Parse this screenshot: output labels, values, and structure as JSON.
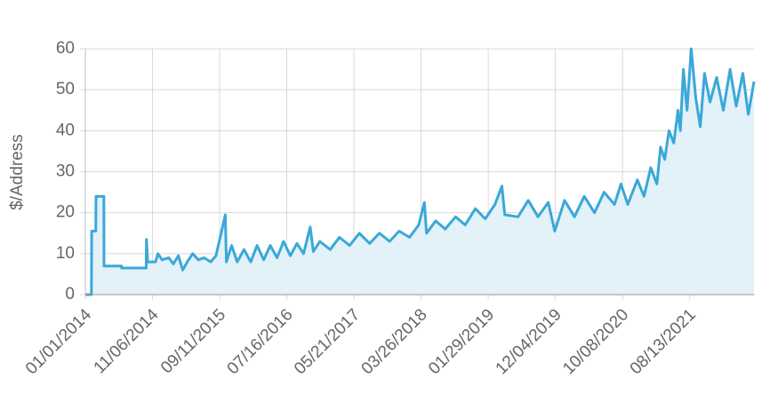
{
  "chart_data": {
    "type": "line",
    "ylabel": "$/Address",
    "color": "#3aa8d8",
    "fill": "#e3f1f9",
    "grid": true,
    "xlim": [
      "01/01/2014",
      "06/05/2022"
    ],
    "xticks": [
      "01/01/2014",
      "11/06/2014",
      "09/11/2015",
      "07/16/2016",
      "05/21/2017",
      "03/26/2018",
      "01/29/2019",
      "12/04/2019",
      "10/08/2020",
      "08/13/2021"
    ],
    "ylim": [
      0,
      60
    ],
    "yticks": [
      0,
      10,
      20,
      30,
      40,
      50,
      60
    ],
    "x": [
      "01/01/2014",
      "01/29/2014",
      "01/30/2014",
      "02/18/2014",
      "02/19/2014",
      "03/27/2014",
      "03/28/2014",
      "06/16/2014",
      "06/17/2014",
      "10/08/2014",
      "10/09/2014",
      "10/15/2014",
      "11/20/2014",
      "12/01/2014",
      "12/20/2014",
      "01/20/2015",
      "02/10/2015",
      "03/05/2015",
      "03/25/2015",
      "04/15/2015",
      "05/10/2015",
      "06/05/2015",
      "07/01/2015",
      "08/01/2015",
      "08/25/2015",
      "10/07/2015",
      "10/12/2015",
      "11/05/2015",
      "12/01/2015",
      "01/01/2016",
      "02/01/2016",
      "03/01/2016",
      "04/01/2016",
      "05/01/2016",
      "06/01/2016",
      "07/01/2016",
      "08/01/2016",
      "09/01/2016",
      "10/01/2016",
      "11/01/2016",
      "11/15/2016",
      "12/15/2016",
      "02/01/2017",
      "03/15/2017",
      "05/01/2017",
      "06/15/2017",
      "08/01/2017",
      "09/15/2017",
      "11/01/2017",
      "12/15/2017",
      "02/01/2018",
      "03/15/2018",
      "04/10/2018",
      "04/20/2018",
      "06/01/2018",
      "07/15/2018",
      "09/01/2018",
      "10/15/2018",
      "12/01/2018",
      "01/15/2019",
      "03/01/2019",
      "04/02/2019",
      "04/15/2019",
      "06/15/2019",
      "08/01/2019",
      "09/15/2019",
      "11/01/2019",
      "12/01/2019",
      "01/15/2020",
      "03/01/2020",
      "04/15/2020",
      "06/01/2020",
      "07/15/2020",
      "09/01/2020",
      "10/01/2020",
      "11/01/2020",
      "12/15/2020",
      "01/15/2021",
      "02/15/2021",
      "03/15/2021",
      "04/01/2021",
      "04/20/2021",
      "05/10/2021",
      "06/01/2021",
      "06/20/2021",
      "07/01/2021",
      "07/15/2021",
      "08/01/2021",
      "08/20/2021",
      "09/10/2021",
      "10/01/2021",
      "10/20/2021",
      "11/15/2021",
      "12/15/2021",
      "01/15/2022",
      "02/15/2022",
      "03/15/2022",
      "04/15/2022",
      "05/10/2022",
      "06/05/2022"
    ],
    "values": [
      0,
      0,
      15.5,
      15.5,
      24,
      24,
      7,
      7,
      6.5,
      6.5,
      13.5,
      8,
      8,
      10,
      8.5,
      9,
      7.5,
      9.5,
      6,
      8,
      10,
      8.5,
      9,
      8,
      9.5,
      19.5,
      8,
      12,
      8,
      11,
      8,
      12,
      8.5,
      12,
      9,
      13,
      9.5,
      12.5,
      10,
      16.5,
      10.5,
      13,
      11,
      14,
      12,
      15,
      12.5,
      15,
      13,
      15.5,
      14,
      17,
      22.5,
      15,
      18,
      16,
      19,
      17,
      21,
      18.5,
      22,
      26.5,
      19.5,
      19,
      23,
      19,
      22.5,
      15.5,
      23,
      19,
      24,
      20,
      25,
      22,
      27,
      22,
      28,
      24,
      31,
      27,
      36,
      33,
      40,
      37,
      45,
      40,
      55,
      45,
      60,
      48,
      41,
      54,
      47,
      53,
      45,
      55,
      46,
      54,
      44,
      52
    ]
  }
}
